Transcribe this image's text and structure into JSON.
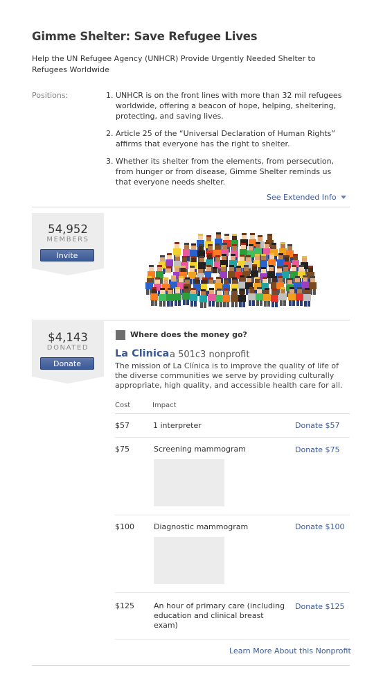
{
  "header": {
    "title": "Gimme Shelter: Save Refugee Lives",
    "subtitle": "Help the UN Refugee Agency (UNHCR) Provide Urgently Needed Shelter to Refugees Worldwide"
  },
  "positions": {
    "label": "Positions:",
    "items": [
      {
        "num": "1.",
        "text": "UNHCR is on the front lines with more than 32 mil refugees worldwide, offering a beacon of hope, helping, sheltering, protecting, and saving lives."
      },
      {
        "num": "2.",
        "text": "Article 25 of the “Universal Declaration of Human Rights” affirms that everyone has the right to shelter."
      },
      {
        "num": "3.",
        "text": "Whether its shelter from the elements, from persecution, from hunger or from disease, Gimme Shelter reminds us that everyone needs shelter."
      }
    ],
    "see_extended": "See Extended Info"
  },
  "members": {
    "count": "54,952",
    "label": "MEMBERS",
    "button": "Invite"
  },
  "donated": {
    "amount": "$4,143",
    "label": "DONATED",
    "button": "Donate"
  },
  "money": {
    "heading": "Where does the money go?",
    "nonprofit_name": "La Clinica",
    "nonprofit_type": "a 501c3 nonprofit",
    "mission": "The mission of La Clínica is to improve the quality of life of the diverse communities we serve by providing culturally appropriate, high quality, and accessible health care for all.",
    "col_cost": "Cost",
    "col_impact": "Impact",
    "rows": [
      {
        "cost": "$57",
        "impact": "1 interpreter",
        "link": "Donate $57"
      },
      {
        "cost": "$75",
        "impact": "Screening mammogram",
        "link": "Donate $75"
      },
      {
        "cost": "$100",
        "impact": "Diagnostic mammogram",
        "link": "Donate $100"
      },
      {
        "cost": "$125",
        "impact": "An hour of primary care (including education and clinical breast exam)",
        "link": "Donate $125"
      }
    ],
    "learn_more": "Learn More About this Nonprofit"
  }
}
